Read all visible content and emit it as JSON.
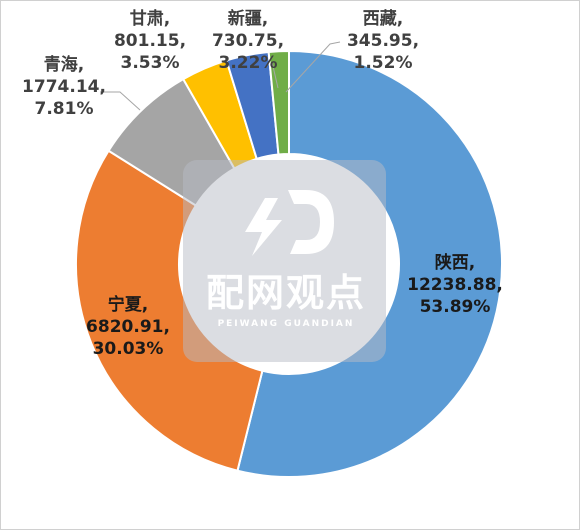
{
  "chart_data": {
    "type": "pie",
    "donut": true,
    "categories": [
      "陕西",
      "宁夏",
      "青海",
      "甘肃",
      "新疆",
      "西藏"
    ],
    "values": [
      12238.88,
      6820.91,
      1774.14,
      801.15,
      730.75,
      345.95
    ],
    "percent_labels": [
      "53.89%",
      "30.03%",
      "7.81%",
      "3.53%",
      "3.22%",
      "1.52%"
    ],
    "value_labels": [
      "12238.88,",
      "6820.91,",
      "1774.14,",
      "801.15,",
      "730.75,",
      "345.95,"
    ],
    "name_labels": [
      "陕西,",
      "宁夏,",
      "青海,",
      "甘肃,",
      "新疆,",
      "西藏,"
    ],
    "colors": [
      "#5b9bd5",
      "#ed7d31",
      "#a5a5a5",
      "#ffc000",
      "#4472c4",
      "#70ad47"
    ],
    "legend": "none"
  },
  "watermark": {
    "logo": "4D",
    "title": "配网观点",
    "subtitle": "PEIWANG GUANDIAN"
  }
}
